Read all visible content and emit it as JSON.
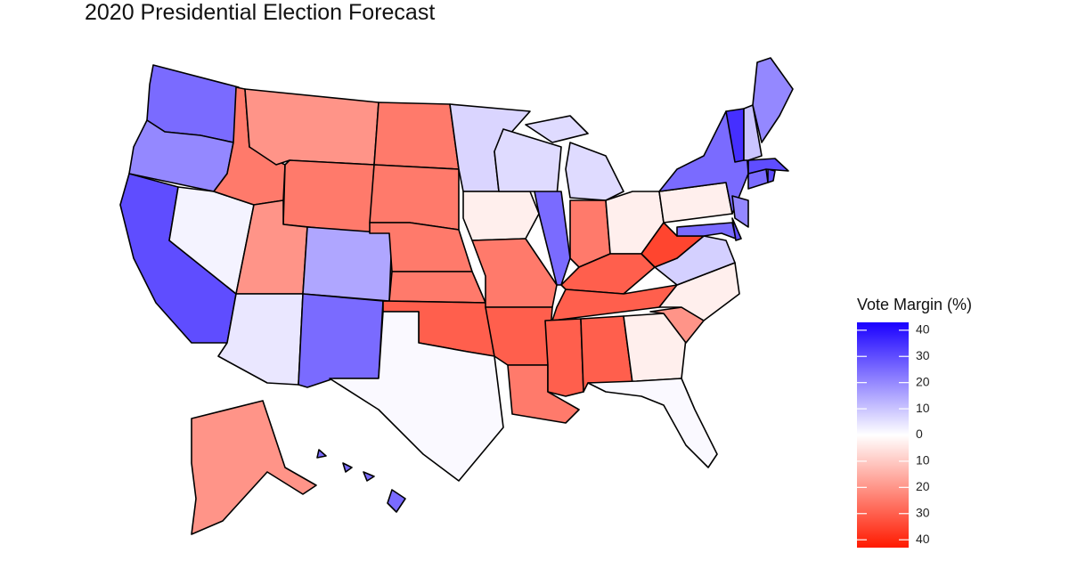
{
  "chart_data": {
    "type": "choropleth",
    "title": "2020 Presidential Election Forecast",
    "legend_title": "Vote Margin (%)",
    "values": [
      25,
      20,
      30,
      2,
      -25,
      -20,
      -25,
      -20,
      15,
      4,
      25,
      -25,
      -25,
      -25,
      -25,
      -30,
      1,
      7,
      -3,
      -25,
      -30,
      -25,
      6,
      25,
      6,
      -25,
      -3,
      -30,
      -30,
      -30,
      -30,
      -3,
      1,
      -20,
      -3,
      8,
      -35,
      -3,
      25,
      25,
      30,
      20,
      25,
      30,
      30,
      35,
      10,
      20,
      -20,
      25
    ],
    "clim": [
      -43,
      43
    ],
    "low_color": "#ff1a00",
    "mid_color": "#ffffff",
    "high_color": "#1a00ff",
    "ticks": [
      {
        "value": 40,
        "label": "40"
      },
      {
        "value": 30,
        "label": "30"
      },
      {
        "value": 20,
        "label": "20"
      },
      {
        "value": 10,
        "label": "10"
      },
      {
        "value": 0,
        "label": "0"
      },
      {
        "value": -10,
        "label": "10"
      },
      {
        "value": -20,
        "label": "20"
      },
      {
        "value": -30,
        "label": "30"
      },
      {
        "value": -40,
        "label": "40"
      }
    ]
  }
}
